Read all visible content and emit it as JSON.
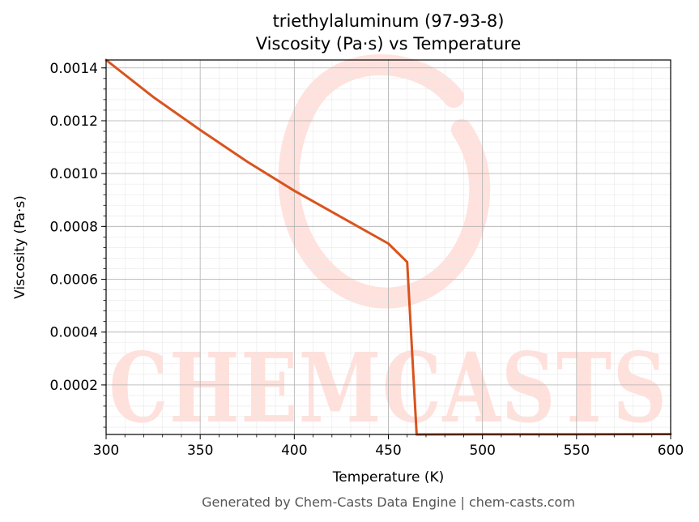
{
  "chart_data": {
    "type": "line",
    "title": [
      "triethylaluminum (97-93-8)",
      "Viscosity (Pa·s) vs Temperature"
    ],
    "xlabel": "Temperature (K)",
    "ylabel": "Viscosity (Pa·s)",
    "xlim": [
      300,
      600
    ],
    "ylim": [
      1.25e-05,
      0.00143
    ],
    "x_ticks": [
      300,
      350,
      400,
      450,
      500,
      550,
      600
    ],
    "x_tick_labels": [
      "300",
      "350",
      "400",
      "450",
      "500",
      "550",
      "600"
    ],
    "y_ticks": [
      0.0002,
      0.0004,
      0.0006,
      0.0008,
      0.001,
      0.0012,
      0.0014
    ],
    "y_tick_labels": [
      "0.0002",
      "0.0004",
      "0.0006",
      "0.0008",
      "0.0010",
      "0.0012",
      "0.0014"
    ],
    "grid": true,
    "line_color": "#d9531e",
    "series": [
      {
        "x": [
          300,
          325,
          350,
          375,
          400,
          425,
          450,
          460,
          465,
          500,
          550,
          600
        ],
        "y": [
          0.00143,
          0.00129,
          0.001165,
          0.001045,
          0.000935,
          0.000835,
          0.000735,
          0.000665,
          1.25e-05,
          1.3e-05,
          1.35e-05,
          1.4e-05
        ]
      }
    ]
  },
  "watermark": {
    "text": "CHEMCASTS",
    "color": "#ffd6cf"
  },
  "footer": "Generated by Chem-Casts Data Engine | chem-casts.com"
}
